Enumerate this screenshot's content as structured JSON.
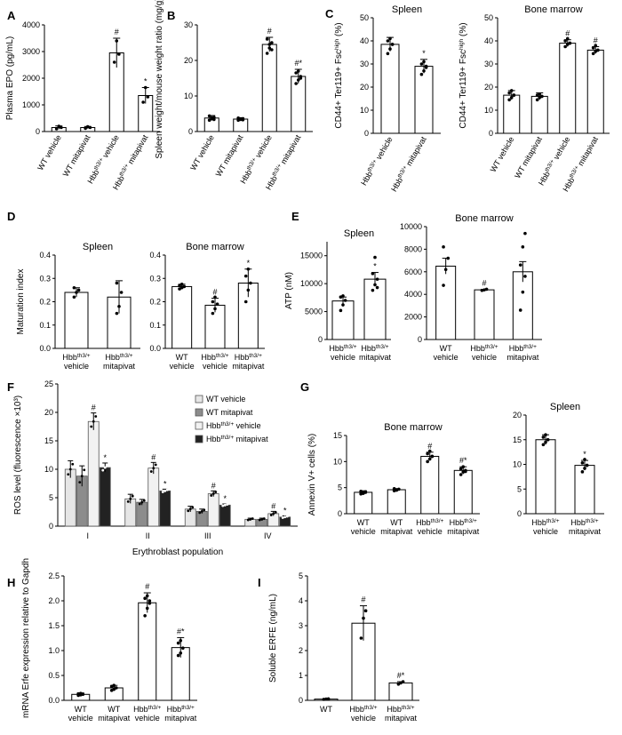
{
  "figure": {
    "legend_F": [
      "WT vehicle",
      "WT mitapivat",
      "Hbb^th3/+ vehicle",
      "Hbb^th3/+ mitapivat"
    ]
  },
  "chart_data": [
    {
      "id": "A",
      "type": "bar",
      "panel_label": "A",
      "ylabel": "Plasma EPO (pg/mL)",
      "ylim": [
        0,
        4000
      ],
      "yticks": [
        0,
        1000,
        2000,
        3000,
        4000
      ],
      "categories": [
        "WT vehicle",
        "WT mitapivat",
        "Hbb^th3/+ vehicle",
        "Hbb^th3/+ mitapivat"
      ],
      "values": [
        150,
        150,
        2950,
        1350
      ],
      "errors": [
        60,
        40,
        550,
        300
      ],
      "marks": [
        "",
        "",
        "#",
        "*"
      ],
      "points": [
        [
          100,
          200,
          150
        ],
        [
          120,
          180,
          150
        ],
        [
          2600,
          3400,
          2900
        ],
        [
          1100,
          1650,
          1300
        ]
      ],
      "fills": [
        "#ffffff",
        "#ffffff",
        "#ffffff",
        "#ffffff"
      ],
      "rotate_labels": true
    },
    {
      "id": "B",
      "type": "bar",
      "panel_label": "B",
      "ylabel": "Spleen weight/mouse weight ratio (mg/g)",
      "ylim": [
        0,
        30
      ],
      "yticks": [
        0,
        10,
        20,
        30
      ],
      "categories": [
        "WT vehicle",
        "WT mitapivat",
        "Hbb^th3/+ vehicle",
        "Hbb^th3/+ mitapivat"
      ],
      "values": [
        3.8,
        3.5,
        24.5,
        15.5
      ],
      "errors": [
        0.7,
        0.4,
        2.0,
        2.0
      ],
      "marks": [
        "",
        "",
        "#",
        "#*"
      ],
      "points": [
        [
          3.2,
          3.6,
          4.0,
          4.4,
          3.8,
          3.4
        ],
        [
          3.2,
          3.4,
          3.6,
          3.8,
          3.5,
          3.3
        ],
        [
          22,
          23.5,
          25,
          26,
          24.5,
          23
        ],
        [
          13.5,
          14.5,
          15.5,
          16.5,
          17,
          15
        ]
      ],
      "fills": [
        "#ffffff",
        "#ffffff",
        "#ffffff",
        "#ffffff"
      ],
      "rotate_labels": true
    },
    {
      "id": "C1",
      "type": "bar",
      "panel_label": "C",
      "title": "Spleen",
      "ylabel": "CD44+ Ter119+ Fsc^high (%)",
      "ylim": [
        0,
        50
      ],
      "yticks": [
        0,
        10,
        20,
        30,
        40,
        50
      ],
      "categories": [
        "Hbb^th3/+ vehicle",
        "Hbb^th3/+ mitapivat"
      ],
      "values": [
        38.5,
        29
      ],
      "errors": [
        3.0,
        3.0
      ],
      "marks": [
        "",
        "*"
      ],
      "points": [
        [
          34.5,
          36.5,
          38.5,
          40,
          41,
          38.5
        ],
        [
          25.5,
          27,
          28.5,
          30,
          31,
          29
        ]
      ],
      "fills": [
        "#ffffff",
        "#ffffff"
      ],
      "rotate_labels": true
    },
    {
      "id": "C2",
      "type": "bar",
      "title": "Bone marrow",
      "ylabel": "CD44+ Ter119+ Fsc^high (%)",
      "ylim": [
        0,
        50
      ],
      "yticks": [
        0,
        10,
        20,
        30,
        40,
        50
      ],
      "categories": [
        "WT vehicle",
        "WT mitapivat",
        "Hbb^th3/+ vehicle",
        "Hbb^th3/+ mitapivat"
      ],
      "values": [
        16.5,
        16,
        39,
        36
      ],
      "errors": [
        2.0,
        1.5,
        1.5,
        1.5
      ],
      "marks": [
        "",
        "",
        "#",
        "#"
      ],
      "points": [
        [
          14.5,
          15.5,
          16.5,
          17.5,
          18.5,
          16.5
        ],
        [
          14.5,
          15.5,
          16,
          16.5,
          17,
          16
        ],
        [
          37.5,
          38.5,
          39,
          40,
          41,
          39
        ],
        [
          34.5,
          35.5,
          36,
          37,
          38,
          36
        ]
      ],
      "fills": [
        "#ffffff",
        "#ffffff",
        "#ffffff",
        "#ffffff"
      ],
      "rotate_labels": true
    },
    {
      "id": "D1",
      "type": "bar",
      "panel_label": "D",
      "title": "Spleen",
      "ylabel": "Maturation index",
      "ylim": [
        0,
        0.4
      ],
      "yticks": [
        0.0,
        0.1,
        0.2,
        0.3,
        0.4
      ],
      "tick_decimals": 1,
      "categories": [
        "Hbb^th3/+ vehicle",
        "Hbb^th3/+ mitapivat"
      ],
      "values": [
        0.24,
        0.22
      ],
      "errors": [
        0.02,
        0.07
      ],
      "marks": [
        "",
        ""
      ],
      "points": [
        [
          0.22,
          0.24,
          0.25,
          0.26
        ],
        [
          0.15,
          0.18,
          0.24,
          0.28
        ]
      ],
      "fills": [
        "#ffffff",
        "#ffffff"
      ],
      "rotate_labels": false
    },
    {
      "id": "D2",
      "type": "bar",
      "title": "Bone marrow",
      "ylabel": "",
      "ylim": [
        0,
        0.4
      ],
      "yticks": [
        0.0,
        0.1,
        0.2,
        0.3,
        0.4
      ],
      "tick_decimals": 1,
      "categories": [
        "WT vehicle",
        "Hbb^th3/+ vehicle",
        "Hbb^th3/+ mitapivat"
      ],
      "values": [
        0.265,
        0.185,
        0.28
      ],
      "errors": [
        0.01,
        0.03,
        0.06
      ],
      "marks": [
        "",
        "#",
        "*"
      ],
      "points": [
        [
          0.255,
          0.26,
          0.265,
          0.27,
          0.275
        ],
        [
          0.15,
          0.17,
          0.19,
          0.2,
          0.22
        ],
        [
          0.2,
          0.25,
          0.28,
          0.31,
          0.34
        ]
      ],
      "fills": [
        "#ffffff",
        "#ffffff",
        "#ffffff"
      ],
      "rotate_labels": false
    },
    {
      "id": "E1",
      "type": "bar",
      "panel_label": "E",
      "title": "Spleen",
      "ylabel": "ATP (nM)",
      "ylim": [
        0,
        17500
      ],
      "yticks": [
        0,
        5000,
        10000,
        15000
      ],
      "categories": [
        "Hbb^th3/+ vehicle",
        "Hbb^th3/+ mitapivat"
      ],
      "values": [
        6900,
        10800
      ],
      "errors": [
        700,
        1200
      ],
      "marks": [
        "",
        "*"
      ],
      "points": [
        [
          5200,
          6200,
          7000,
          7600,
          7800
        ],
        [
          8800,
          9800,
          10800,
          11800,
          14700,
          9300
        ]
      ],
      "fills": [
        "#ffffff",
        "#ffffff"
      ],
      "rotate_labels": false
    },
    {
      "id": "E2",
      "type": "bar",
      "title": "Bone marrow",
      "ylabel": "",
      "ylim": [
        0,
        10000
      ],
      "yticks": [
        0,
        2000,
        4000,
        6000,
        8000,
        10000
      ],
      "categories": [
        "WT vehicle",
        "Hbb^th3/+ vehicle",
        "Hbb^th3/+ mitapivat"
      ],
      "values": [
        6500,
        4400,
        6000
      ],
      "errors": [
        700,
        50,
        900
      ],
      "marks": [
        "",
        "#",
        ""
      ],
      "points": [
        [
          4800,
          6200,
          7200,
          8200
        ],
        [
          4350,
          4400,
          4450
        ],
        [
          2600,
          4200,
          5600,
          6600,
          8200,
          9400
        ]
      ],
      "fills": [
        "#ffffff",
        "#ffffff",
        "#ffffff"
      ],
      "rotate_labels": false
    },
    {
      "id": "F",
      "type": "grouped_bar",
      "panel_label": "F",
      "xlabel": "Erythroblast population",
      "ylabel": "ROS level (fluorescence ×10³)",
      "ylim": [
        0,
        25
      ],
      "yticks": [
        0,
        5,
        10,
        15,
        20,
        25
      ],
      "categories": [
        "I",
        "II",
        "III",
        "IV"
      ],
      "series": [
        {
          "values": [
            10,
            4.8,
            3.0,
            1.2
          ],
          "errors": [
            1.5,
            0.8,
            0.5,
            0.2
          ],
          "fill": "#e6e6e6"
        },
        {
          "values": [
            8.8,
            4.2,
            2.6,
            1.2
          ],
          "errors": [
            1.8,
            0.5,
            0.4,
            0.2
          ],
          "fill": "#8c8c8c"
        },
        {
          "values": [
            18.4,
            10.2,
            5.7,
            2.2
          ],
          "errors": [
            1.5,
            1.0,
            0.5,
            0.4
          ],
          "fill": "#f2f2f2"
        },
        {
          "values": [
            10.3,
            6.2,
            3.7,
            1.6
          ],
          "errors": [
            0.8,
            0.3,
            0.2,
            0.2
          ],
          "fill": "#222222"
        }
      ],
      "marks": [
        [
          "",
          "",
          "#",
          "*"
        ],
        [
          "",
          "",
          "#",
          "*"
        ],
        [
          "",
          "",
          "#",
          "*"
        ],
        [
          "",
          "",
          "#",
          "*"
        ]
      ]
    },
    {
      "id": "G1",
      "type": "bar",
      "panel_label": "G",
      "title": "Bone marrow",
      "ylabel": "Annexin V+ cells (%)",
      "ylim": [
        0,
        15
      ],
      "yticks": [
        0,
        5,
        10,
        15
      ],
      "categories": [
        "WT vehicle",
        "WT mitapivat",
        "Hbb^th3/+ vehicle",
        "Hbb^th3/+ mitapivat"
      ],
      "values": [
        4.1,
        4.6,
        11.0,
        8.3
      ],
      "errors": [
        0.3,
        0.2,
        0.8,
        0.7
      ],
      "marks": [
        "",
        "",
        "#",
        "#*"
      ],
      "points": [
        [
          3.8,
          4.0,
          4.2,
          4.3,
          3.9,
          4.1
        ],
        [
          4.4,
          4.6,
          4.7,
          4.8,
          4.5
        ],
        [
          10,
          10.5,
          11,
          11.5,
          12,
          11
        ],
        [
          7.5,
          8,
          8.3,
          8.6,
          9.0,
          8.1
        ]
      ],
      "fills": [
        "#ffffff",
        "#ffffff",
        "#ffffff",
        "#ffffff"
      ],
      "rotate_labels": false
    },
    {
      "id": "G2",
      "type": "bar",
      "title": "Spleen",
      "ylabel": "",
      "ylim": [
        0,
        20
      ],
      "yticks": [
        0,
        5,
        10,
        15,
        20
      ],
      "categories": [
        "Hbb^th3/+ vehicle",
        "Hbb^th3/+ mitapivat"
      ],
      "values": [
        15,
        9.8
      ],
      "errors": [
        1.0,
        1.0
      ],
      "marks": [
        "",
        "*"
      ],
      "points": [
        [
          14,
          14.5,
          15,
          15.5,
          16,
          15
        ],
        [
          8.5,
          9.2,
          9.8,
          10.3,
          11,
          9.8
        ]
      ],
      "fills": [
        "#ffffff",
        "#ffffff"
      ],
      "rotate_labels": false
    },
    {
      "id": "H",
      "type": "bar",
      "panel_label": "H",
      "ylabel": "mRNA Erfe expression relative to Gapdh",
      "ylim": [
        0,
        2.5
      ],
      "yticks": [
        0.0,
        0.5,
        1.0,
        1.5,
        2.0,
        2.5
      ],
      "tick_decimals": 1,
      "categories": [
        "WT vehicle",
        "WT mitapivat",
        "Hbb^th3/+ vehicle",
        "Hbb^th3/+ mitapivat"
      ],
      "values": [
        0.12,
        0.25,
        1.96,
        1.06
      ],
      "errors": [
        0.03,
        0.05,
        0.2,
        0.2
      ],
      "marks": [
        "",
        "",
        "#",
        "#*"
      ],
      "points": [
        [
          0.1,
          0.11,
          0.12,
          0.13,
          0.14
        ],
        [
          0.2,
          0.22,
          0.25,
          0.28,
          0.3
        ],
        [
          1.7,
          1.85,
          1.95,
          2.05,
          2.1,
          2.0
        ],
        [
          0.9,
          0.95,
          1.05,
          1.15,
          1.2
        ]
      ],
      "fills": [
        "#ffffff",
        "#ffffff",
        "#ffffff",
        "#ffffff"
      ],
      "rotate_labels": false
    },
    {
      "id": "I",
      "type": "bar",
      "panel_label": "I",
      "ylabel": "Soluble ERFE (ng/mL)",
      "ylim": [
        0,
        5
      ],
      "yticks": [
        0,
        1,
        2,
        3,
        4,
        5
      ],
      "categories": [
        "WT",
        "Hbb^th3/+ vehicle",
        "Hbb^th3/+ mitapivat"
      ],
      "values": [
        0.05,
        3.1,
        0.7
      ],
      "errors": [
        0.02,
        0.7,
        0.05
      ],
      "marks": [
        "",
        "#",
        "#*"
      ],
      "points": [
        [
          0.04,
          0.05,
          0.06
        ],
        [
          2.5,
          3.3,
          3.6
        ],
        [
          0.65,
          0.7,
          0.75
        ]
      ],
      "fills": [
        "#ffffff",
        "#ffffff",
        "#ffffff"
      ],
      "rotate_labels": false
    }
  ]
}
